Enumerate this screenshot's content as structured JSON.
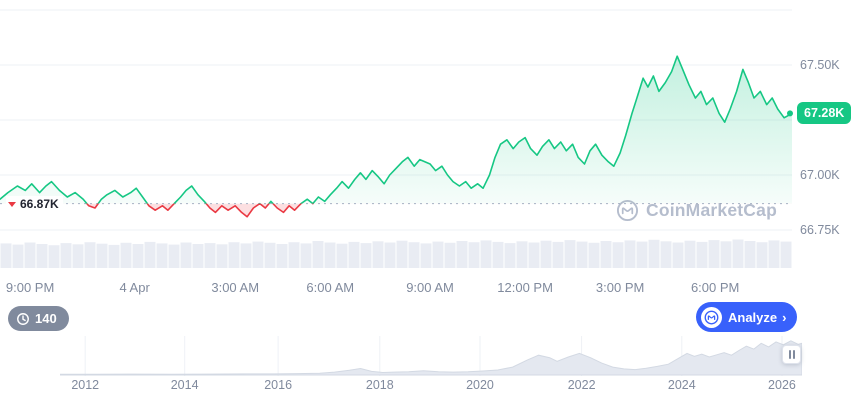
{
  "chart": {
    "open_price": "66.87K",
    "current_price": "67.28K",
    "watermark": "CoinMarketCap"
  },
  "controls": {
    "history_count": "140",
    "analyze_label": "Analyze",
    "analyze_chevron": "›"
  },
  "chart_data": {
    "type": "line",
    "title": "Bitcoin price intraday chart (thousands USD)",
    "baseline": 66.87,
    "current": 67.28,
    "ylim": [
      66.7,
      67.79
    ],
    "colors": {
      "up": "#16c784",
      "down": "#ea3943",
      "badge": "#16c784",
      "accent_blue": "#3861fb",
      "axis_text": "#808a9d",
      "grid": "#eef1f6",
      "volume": "#e9ecf3",
      "navigator_fill": "#e4e8f0"
    },
    "y_gridlines": [
      67.75,
      67.5,
      67.25,
      67.0,
      66.75
    ],
    "y_ticks": [
      {
        "label": "67.50K",
        "price": 67.5
      },
      {
        "label": "67.00K",
        "price": 67.0
      },
      {
        "label": "66.75K",
        "price": 66.75
      }
    ],
    "x_ticks": [
      {
        "label": "9:00 PM",
        "f": 0.038
      },
      {
        "label": "4 Apr",
        "f": 0.17
      },
      {
        "label": "3:00 AM",
        "f": 0.297
      },
      {
        "label": "6:00 AM",
        "f": 0.417
      },
      {
        "label": "9:00 AM",
        "f": 0.543
      },
      {
        "label": "12:00 PM",
        "f": 0.663
      },
      {
        "label": "3:00 PM",
        "f": 0.783
      },
      {
        "label": "6:00 PM",
        "f": 0.903
      }
    ],
    "series": [
      {
        "name": "price",
        "points": [
          [
            0.0,
            66.89
          ],
          [
            0.01,
            66.92
          ],
          [
            0.022,
            66.95
          ],
          [
            0.032,
            66.93
          ],
          [
            0.04,
            66.96
          ],
          [
            0.05,
            66.92
          ],
          [
            0.058,
            66.95
          ],
          [
            0.065,
            66.97
          ],
          [
            0.075,
            66.93
          ],
          [
            0.085,
            66.9
          ],
          [
            0.095,
            66.92
          ],
          [
            0.105,
            66.89
          ],
          [
            0.112,
            66.86
          ],
          [
            0.12,
            66.85
          ],
          [
            0.128,
            66.89
          ],
          [
            0.135,
            66.91
          ],
          [
            0.145,
            66.93
          ],
          [
            0.155,
            66.9
          ],
          [
            0.165,
            66.92
          ],
          [
            0.172,
            66.94
          ],
          [
            0.18,
            66.9
          ],
          [
            0.188,
            66.86
          ],
          [
            0.196,
            66.84
          ],
          [
            0.205,
            66.86
          ],
          [
            0.212,
            66.84
          ],
          [
            0.22,
            66.87
          ],
          [
            0.228,
            66.9
          ],
          [
            0.235,
            66.93
          ],
          [
            0.242,
            66.95
          ],
          [
            0.25,
            66.91
          ],
          [
            0.258,
            66.88
          ],
          [
            0.265,
            66.85
          ],
          [
            0.272,
            66.83
          ],
          [
            0.28,
            66.86
          ],
          [
            0.288,
            66.84
          ],
          [
            0.297,
            66.86
          ],
          [
            0.305,
            66.83
          ],
          [
            0.312,
            66.81
          ],
          [
            0.32,
            66.85
          ],
          [
            0.328,
            66.87
          ],
          [
            0.335,
            66.85
          ],
          [
            0.342,
            66.88
          ],
          [
            0.35,
            66.85
          ],
          [
            0.358,
            66.83
          ],
          [
            0.365,
            66.86
          ],
          [
            0.372,
            66.84
          ],
          [
            0.38,
            66.87
          ],
          [
            0.388,
            66.89
          ],
          [
            0.395,
            66.87
          ],
          [
            0.402,
            66.9
          ],
          [
            0.41,
            66.88
          ],
          [
            0.417,
            66.91
          ],
          [
            0.425,
            66.94
          ],
          [
            0.432,
            66.97
          ],
          [
            0.44,
            66.94
          ],
          [
            0.448,
            66.98
          ],
          [
            0.455,
            67.01
          ],
          [
            0.462,
            66.98
          ],
          [
            0.47,
            67.02
          ],
          [
            0.478,
            66.99
          ],
          [
            0.485,
            66.96
          ],
          [
            0.492,
            67.0
          ],
          [
            0.5,
            67.03
          ],
          [
            0.508,
            67.06
          ],
          [
            0.515,
            67.08
          ],
          [
            0.523,
            67.04
          ],
          [
            0.53,
            67.07
          ],
          [
            0.543,
            67.05
          ],
          [
            0.55,
            67.02
          ],
          [
            0.558,
            67.04
          ],
          [
            0.565,
            67.0
          ],
          [
            0.572,
            66.97
          ],
          [
            0.58,
            66.95
          ],
          [
            0.588,
            66.97
          ],
          [
            0.595,
            66.94
          ],
          [
            0.603,
            66.96
          ],
          [
            0.61,
            66.94
          ],
          [
            0.618,
            67.0
          ],
          [
            0.625,
            67.08
          ],
          [
            0.632,
            67.14
          ],
          [
            0.64,
            67.16
          ],
          [
            0.648,
            67.12
          ],
          [
            0.655,
            67.15
          ],
          [
            0.663,
            67.17
          ],
          [
            0.67,
            67.12
          ],
          [
            0.678,
            67.09
          ],
          [
            0.685,
            67.13
          ],
          [
            0.693,
            67.16
          ],
          [
            0.7,
            67.12
          ],
          [
            0.708,
            67.15
          ],
          [
            0.715,
            67.11
          ],
          [
            0.723,
            67.14
          ],
          [
            0.73,
            67.08
          ],
          [
            0.738,
            67.05
          ],
          [
            0.745,
            67.11
          ],
          [
            0.752,
            67.14
          ],
          [
            0.76,
            67.09
          ],
          [
            0.768,
            67.06
          ],
          [
            0.775,
            67.04
          ],
          [
            0.783,
            67.1
          ],
          [
            0.79,
            67.18
          ],
          [
            0.798,
            67.28
          ],
          [
            0.805,
            67.36
          ],
          [
            0.812,
            67.44
          ],
          [
            0.818,
            67.4
          ],
          [
            0.825,
            67.45
          ],
          [
            0.832,
            67.38
          ],
          [
            0.84,
            67.42
          ],
          [
            0.848,
            67.47
          ],
          [
            0.855,
            67.54
          ],
          [
            0.862,
            67.48
          ],
          [
            0.87,
            67.41
          ],
          [
            0.878,
            67.35
          ],
          [
            0.885,
            67.38
          ],
          [
            0.892,
            67.32
          ],
          [
            0.9,
            67.35
          ],
          [
            0.908,
            67.28
          ],
          [
            0.915,
            67.24
          ],
          [
            0.922,
            67.3
          ],
          [
            0.93,
            67.38
          ],
          [
            0.938,
            67.48
          ],
          [
            0.945,
            67.42
          ],
          [
            0.952,
            67.35
          ],
          [
            0.96,
            67.38
          ],
          [
            0.968,
            67.32
          ],
          [
            0.975,
            67.35
          ],
          [
            0.982,
            67.3
          ],
          [
            0.99,
            67.26
          ],
          [
            1.0,
            67.28
          ]
        ]
      }
    ],
    "volume": [
      0.82,
      0.78,
      0.85,
      0.8,
      0.76,
      0.83,
      0.79,
      0.86,
      0.81,
      0.77,
      0.84,
      0.8,
      0.87,
      0.82,
      0.78,
      0.85,
      0.8,
      0.83,
      0.79,
      0.86,
      0.82,
      0.88,
      0.84,
      0.8,
      0.86,
      0.82,
      0.9,
      0.85,
      0.81,
      0.87,
      0.83,
      0.89,
      0.85,
      0.91,
      0.86,
      0.82,
      0.88,
      0.84,
      0.9,
      0.86,
      0.92,
      0.87,
      0.83,
      0.89,
      0.85,
      0.91,
      0.87,
      0.93,
      0.88,
      0.84,
      0.9,
      0.86,
      0.92,
      0.88,
      0.94,
      0.89,
      0.85,
      0.91,
      0.87,
      0.93,
      0.89,
      0.95,
      0.9,
      0.86,
      0.92,
      0.88
    ],
    "navigator": {
      "points": [
        [
          0.0,
          0.02
        ],
        [
          0.05,
          0.02
        ],
        [
          0.1,
          0.025
        ],
        [
          0.15,
          0.02
        ],
        [
          0.2,
          0.025
        ],
        [
          0.25,
          0.03
        ],
        [
          0.29,
          0.03
        ],
        [
          0.32,
          0.04
        ],
        [
          0.35,
          0.05
        ],
        [
          0.37,
          0.08
        ],
        [
          0.39,
          0.13
        ],
        [
          0.405,
          0.18
        ],
        [
          0.42,
          0.1
        ],
        [
          0.435,
          0.07
        ],
        [
          0.45,
          0.08
        ],
        [
          0.47,
          0.09
        ],
        [
          0.49,
          0.12
        ],
        [
          0.51,
          0.09
        ],
        [
          0.53,
          0.08
        ],
        [
          0.55,
          0.09
        ],
        [
          0.57,
          0.11
        ],
        [
          0.59,
          0.14
        ],
        [
          0.61,
          0.22
        ],
        [
          0.63,
          0.42
        ],
        [
          0.645,
          0.55
        ],
        [
          0.66,
          0.48
        ],
        [
          0.67,
          0.38
        ],
        [
          0.685,
          0.5
        ],
        [
          0.7,
          0.6
        ],
        [
          0.715,
          0.48
        ],
        [
          0.73,
          0.33
        ],
        [
          0.745,
          0.22
        ],
        [
          0.76,
          0.17
        ],
        [
          0.775,
          0.15
        ],
        [
          0.79,
          0.19
        ],
        [
          0.805,
          0.24
        ],
        [
          0.82,
          0.3
        ],
        [
          0.835,
          0.48
        ],
        [
          0.845,
          0.6
        ],
        [
          0.855,
          0.52
        ],
        [
          0.865,
          0.58
        ],
        [
          0.875,
          0.5
        ],
        [
          0.885,
          0.56
        ],
        [
          0.895,
          0.62
        ],
        [
          0.905,
          0.55
        ],
        [
          0.915,
          0.68
        ],
        [
          0.925,
          0.8
        ],
        [
          0.935,
          0.72
        ],
        [
          0.945,
          0.88
        ],
        [
          0.955,
          0.78
        ],
        [
          0.965,
          0.92
        ],
        [
          0.975,
          0.84
        ],
        [
          0.985,
          0.95
        ],
        [
          0.995,
          0.85
        ],
        [
          1.0,
          0.88
        ]
      ],
      "years": [
        {
          "label": "2012",
          "f": 0.034
        },
        {
          "label": "2014",
          "f": 0.168
        },
        {
          "label": "2016",
          "f": 0.294
        },
        {
          "label": "2018",
          "f": 0.431
        },
        {
          "label": "2020",
          "f": 0.566
        },
        {
          "label": "2022",
          "f": 0.703
        },
        {
          "label": "2024",
          "f": 0.838
        },
        {
          "label": "2026",
          "f": 0.973
        }
      ]
    }
  }
}
